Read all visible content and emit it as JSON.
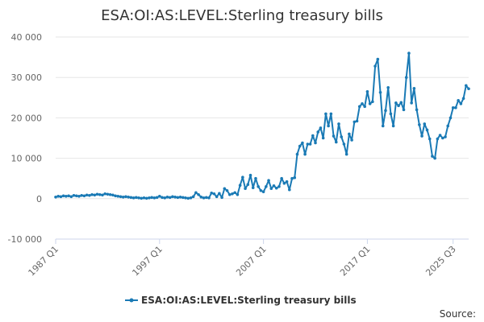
{
  "chart_data": {
    "type": "line",
    "title": "ESA:OI:AS:LEVEL:Sterling treasury bills",
    "xlabel": "",
    "ylabel": "",
    "ylim": [
      -10000,
      40000
    ],
    "y_ticks": [
      {
        "value": 40000,
        "label": "40 000"
      },
      {
        "value": 30000,
        "label": "30 000"
      },
      {
        "value": 20000,
        "label": "20 000"
      },
      {
        "value": 10000,
        "label": "10 000"
      },
      {
        "value": 0,
        "label": "0"
      },
      {
        "value": -10000,
        "label": "-10 000"
      }
    ],
    "x_ticks": [
      {
        "index": 0,
        "label": "1987 Q1"
      },
      {
        "index": 40,
        "label": "1997 Q1"
      },
      {
        "index": 80,
        "label": "2007 Q1"
      },
      {
        "index": 120,
        "label": "2017 Q1"
      },
      {
        "index": 153,
        "label": "2025 Q3"
      }
    ],
    "grid": true,
    "legend_position": "bottom",
    "series": [
      {
        "name": "ESA:OI:AS:LEVEL:Sterling treasury bills",
        "color": "#1a7ab5",
        "values": [
          400,
          600,
          500,
          700,
          600,
          700,
          500,
          800,
          700,
          600,
          800,
          700,
          900,
          800,
          1000,
          900,
          1100,
          1000,
          900,
          1200,
          1100,
          1000,
          900,
          700,
          600,
          500,
          400,
          500,
          400,
          300,
          200,
          300,
          200,
          100,
          200,
          100,
          200,
          300,
          200,
          300,
          600,
          300,
          200,
          400,
          300,
          500,
          400,
          300,
          400,
          300,
          200,
          100,
          200,
          500,
          1500,
          1000,
          400,
          200,
          300,
          200,
          1400,
          1200,
          500,
          1300,
          300,
          2500,
          2000,
          1000,
          1200,
          1500,
          1000,
          3300,
          5300,
          2500,
          3500,
          5800,
          2700,
          5000,
          3000,
          2000,
          1700,
          3000,
          4500,
          2500,
          3200,
          2600,
          3000,
          5000,
          3800,
          4200,
          2200,
          5000,
          5200,
          11000,
          13000,
          13800,
          11000,
          13500,
          13500,
          15600,
          13800,
          16500,
          17500,
          15000,
          21000,
          18000,
          21000,
          15500,
          14000,
          18500,
          15300,
          13500,
          11000,
          16000,
          14500,
          19000,
          19200,
          22800,
          23500,
          22800,
          26500,
          23500,
          24000,
          32800,
          34500,
          26300,
          18000,
          21800,
          27500,
          21000,
          18000,
          23700,
          23000,
          23800,
          22000,
          30000,
          36000,
          23700,
          27300,
          22000,
          18300,
          15500,
          18500,
          17000,
          14800,
          10500,
          10000,
          14800,
          15700,
          15000,
          15300,
          18000,
          20000,
          22500,
          22500,
          24300,
          23500,
          24800,
          28000,
          27200
        ]
      }
    ]
  },
  "legend": {
    "label": "ESA:OI:AS:LEVEL:Sterling treasury bills"
  },
  "footer": {
    "source_label": "Source:"
  }
}
